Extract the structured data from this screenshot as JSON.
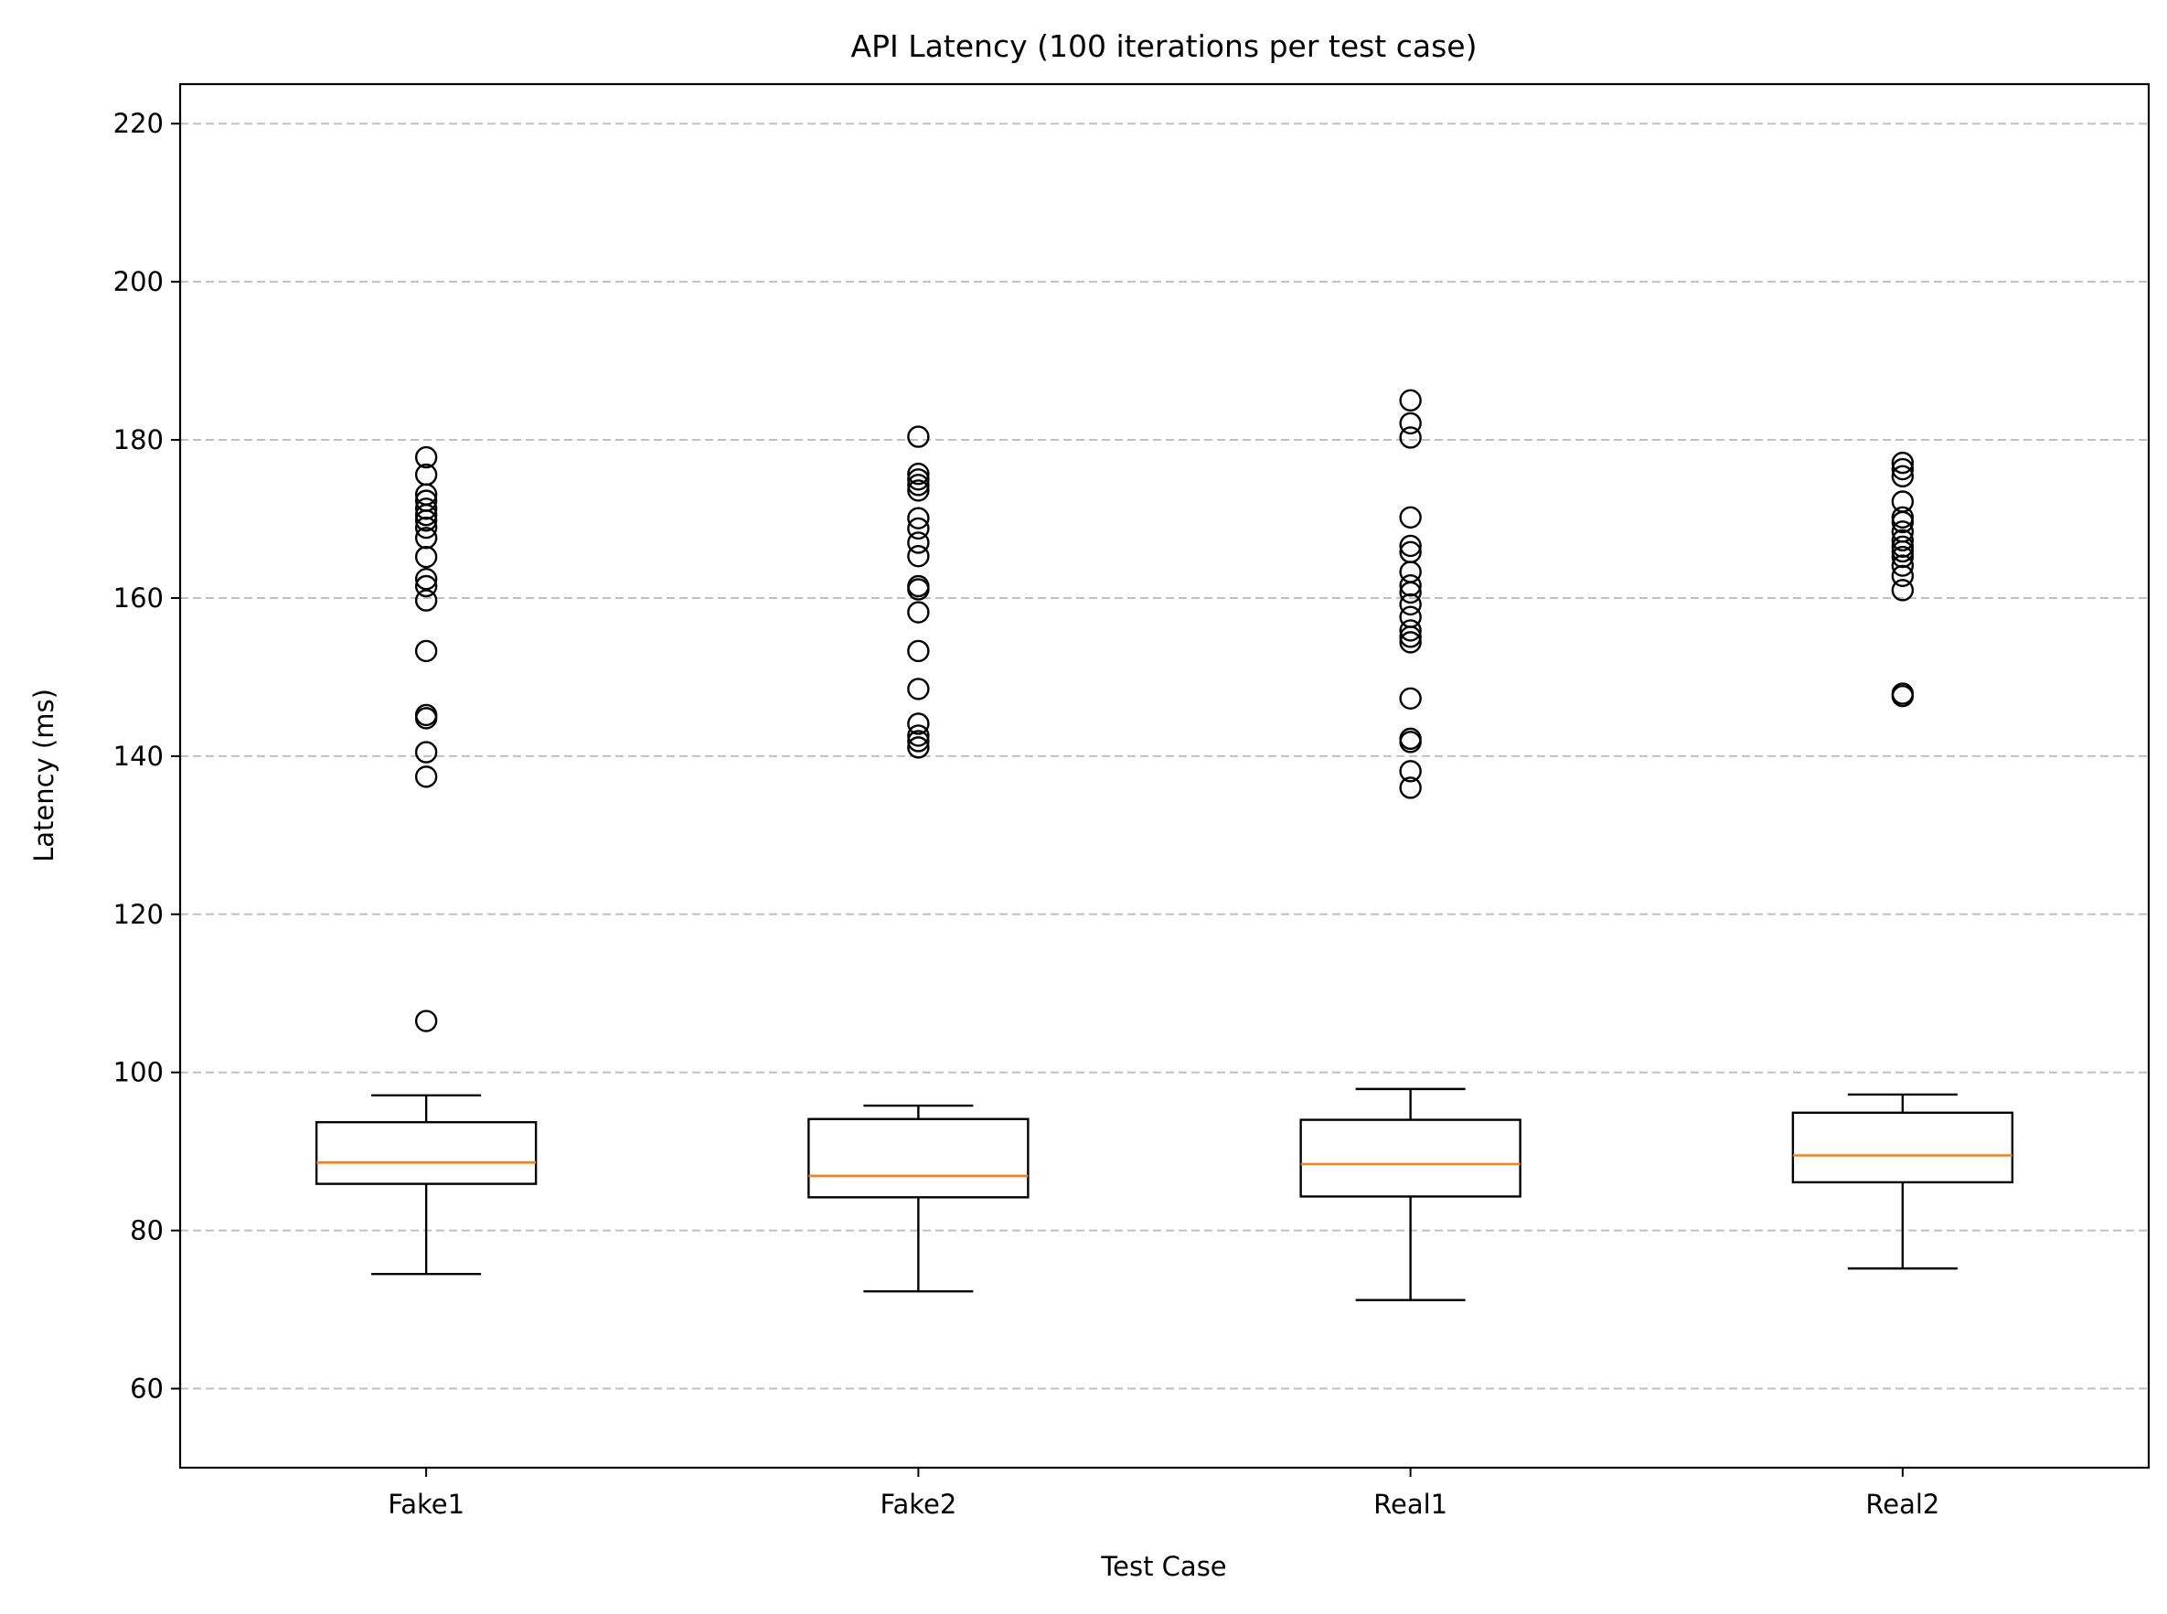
{
  "chart_data": {
    "type": "box",
    "title": "API Latency (100 iterations per test case)",
    "xlabel": "Test Case",
    "ylabel": "Latency (ms)",
    "ylim": [
      50,
      225
    ],
    "yticks": [
      60,
      80,
      100,
      120,
      140,
      160,
      180,
      200,
      220
    ],
    "grid": "y-dashed",
    "categories": [
      "Fake1",
      "Fake2",
      "Real1",
      "Real2"
    ],
    "boxes": [
      {
        "name": "Fake1",
        "whisker_low": 74.5,
        "q1": 85.9,
        "median": 88.6,
        "q3": 93.7,
        "whisker_high": 97.1,
        "outliers": [
          106.5,
          137.4,
          140.5,
          144.8,
          145.2,
          153.3,
          159.7,
          161.5,
          162.4,
          165.2,
          167.6,
          168.9,
          169.8,
          170.5,
          171.3,
          172.3,
          173.1,
          175.6,
          177.8
        ]
      },
      {
        "name": "Fake2",
        "whisker_low": 72.3,
        "q1": 84.2,
        "median": 86.9,
        "q3": 94.1,
        "whisker_high": 95.8,
        "outliers": [
          141.1,
          141.9,
          142.6,
          144.1,
          148.5,
          153.3,
          158.2,
          161.1,
          161.5,
          165.3,
          167.0,
          168.8,
          170.1,
          173.6,
          174.3,
          175.0,
          175.7,
          180.4
        ]
      },
      {
        "name": "Real1",
        "whisker_low": 71.2,
        "q1": 84.3,
        "median": 88.4,
        "q3": 94.0,
        "whisker_high": 97.9,
        "outliers": [
          136.0,
          138.1,
          141.8,
          142.2,
          147.3,
          154.4,
          155.1,
          155.9,
          157.6,
          159.2,
          160.7,
          161.6,
          163.3,
          165.8,
          166.6,
          170.2,
          180.3,
          182.1,
          185.0
        ]
      },
      {
        "name": "Real2",
        "whisker_low": 75.2,
        "q1": 86.1,
        "median": 89.5,
        "q3": 94.9,
        "whisker_high": 97.2,
        "outliers": [
          147.6,
          147.9,
          161.0,
          162.8,
          164.1,
          165.2,
          165.9,
          166.5,
          167.3,
          168.4,
          169.6,
          170.2,
          172.2,
          175.4,
          176.3,
          177.1
        ]
      }
    ],
    "colors": {
      "box": "#000000",
      "median": "#ff7f0e",
      "grid": "#c0c0c0",
      "outlier": "#000000"
    }
  }
}
